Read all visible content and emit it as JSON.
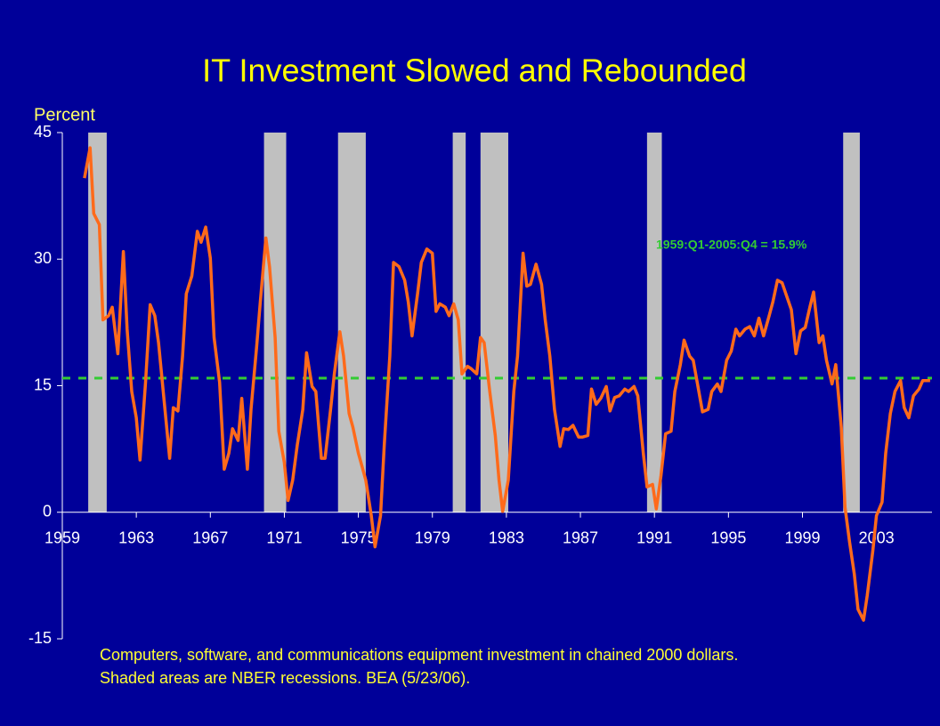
{
  "chart_data": {
    "type": "line",
    "title": "IT Investment Slowed and Rebounded",
    "y_label": "Percent",
    "annotation": "1959:Q1-2005:Q4 = 15.9%",
    "notes": [
      "Computers, software, and communications equipment investment in chained 2000 dollars.",
      "Shaded areas are NBER recessions.  BEA (5/23/06)."
    ],
    "average": 15.9,
    "average_color": "#33cc33",
    "recession_color": "#c0c0c0",
    "recessions": [
      [
        1960.4,
        1961.4
      ],
      [
        1969.9,
        1971.1
      ],
      [
        1973.9,
        1975.4
      ],
      [
        1980.1,
        1980.8
      ],
      [
        1981.6,
        1983.1
      ],
      [
        1990.6,
        1991.4
      ],
      [
        2001.2,
        2002.1
      ]
    ],
    "xlim": [
      1959,
      2006
    ],
    "xticks": [
      1959,
      1963,
      1967,
      1971,
      1975,
      1979,
      1983,
      1987,
      1991,
      1995,
      1999,
      2003
    ],
    "ylim": [
      -15,
      45
    ],
    "yticks": [
      -15,
      0,
      15,
      30,
      45
    ],
    "series": [
      {
        "name": "IT investment",
        "color": "#ff6a1a",
        "x": [
          1960.2,
          1960.5,
          1960.7,
          1961.0,
          1961.2,
          1961.5,
          1961.7,
          1962.0,
          1962.3,
          1962.5,
          1962.75,
          1963.0,
          1963.2,
          1963.5,
          1963.75,
          1964.0,
          1964.2,
          1964.5,
          1964.8,
          1965.0,
          1965.25,
          1965.5,
          1965.7,
          1966.0,
          1966.3,
          1966.5,
          1966.75,
          1967.0,
          1967.2,
          1967.5,
          1967.75,
          1968.0,
          1968.2,
          1968.5,
          1968.7,
          1969.0,
          1969.2,
          1969.5,
          1969.7,
          1970.0,
          1970.2,
          1970.5,
          1970.7,
          1971.0,
          1971.2,
          1971.45,
          1971.7,
          1972.0,
          1972.2,
          1972.5,
          1972.7,
          1973.0,
          1973.2,
          1973.5,
          1973.7,
          1974.0,
          1974.2,
          1974.5,
          1974.7,
          1975.0,
          1975.2,
          1975.4,
          1975.7,
          1975.9,
          1976.2,
          1976.4,
          1976.7,
          1976.9,
          1977.2,
          1977.5,
          1977.7,
          1977.9,
          1978.2,
          1978.4,
          1978.7,
          1979.0,
          1979.2,
          1979.4,
          1979.7,
          1979.9,
          1980.15,
          1980.4,
          1980.6,
          1980.9,
          1981.1,
          1981.4,
          1981.6,
          1981.8,
          1982.1,
          1982.4,
          1982.6,
          1982.8,
          1983.1,
          1983.4,
          1983.6,
          1983.9,
          1984.1,
          1984.3,
          1984.6,
          1984.9,
          1985.1,
          1985.35,
          1985.6,
          1985.9,
          1986.1,
          1986.35,
          1986.6,
          1986.9,
          1987.1,
          1987.4,
          1987.6,
          1987.85,
          1988.1,
          1988.4,
          1988.6,
          1988.85,
          1989.1,
          1989.4,
          1989.6,
          1989.9,
          1990.1,
          1990.4,
          1990.6,
          1990.9,
          1991.1,
          1991.35,
          1991.6,
          1991.9,
          1992.1,
          1992.4,
          1992.6,
          1992.9,
          1993.1,
          1993.4,
          1993.6,
          1993.9,
          1994.1,
          1994.4,
          1994.6,
          1994.9,
          1995.15,
          1995.4,
          1995.6,
          1995.9,
          1996.15,
          1996.4,
          1996.65,
          1996.9,
          1997.2,
          1997.4,
          1997.65,
          1997.9,
          1998.1,
          1998.4,
          1998.65,
          1998.9,
          1999.15,
          1999.4,
          1999.6,
          1999.9,
          2000.1,
          2000.3,
          2000.6,
          2000.8,
          2001.1,
          2001.3,
          2001.55,
          2001.8,
          2002.0,
          2002.3,
          2002.5,
          2002.8,
          2003.0,
          2003.3,
          2003.5,
          2003.75,
          2004.0,
          2004.3,
          2004.5,
          2004.75,
          2005.0,
          2005.3,
          2005.5,
          2005.9
        ],
        "values": [
          39.6,
          43.2,
          35.4,
          34.1,
          22.8,
          23.3,
          24.3,
          18.8,
          30.9,
          21.7,
          14.3,
          11.2,
          6.2,
          15.4,
          24.6,
          23.3,
          20.1,
          13.3,
          6.4,
          12.4,
          12.0,
          18.5,
          25.9,
          28.0,
          33.3,
          32.0,
          33.8,
          30.1,
          20.7,
          15.4,
          5.1,
          7.0,
          9.9,
          8.5,
          13.5,
          5.1,
          12.2,
          19.6,
          24.9,
          32.5,
          29.1,
          20.7,
          9.6,
          5.9,
          1.4,
          3.8,
          8.0,
          12.2,
          18.9,
          14.9,
          14.3,
          6.4,
          6.4,
          12.2,
          16.4,
          21.4,
          18.5,
          11.7,
          10.1,
          7.0,
          5.4,
          3.8,
          -0.4,
          -4.1,
          -0.4,
          8.0,
          18.5,
          29.6,
          29.1,
          27.5,
          24.9,
          20.9,
          25.9,
          29.6,
          31.2,
          30.7,
          23.8,
          24.7,
          24.3,
          23.3,
          24.7,
          22.8,
          16.4,
          17.3,
          17.0,
          16.4,
          20.7,
          20.1,
          14.3,
          9.1,
          3.8,
          0.1,
          3.8,
          14.3,
          18.5,
          30.7,
          26.8,
          27.0,
          29.4,
          27.0,
          22.8,
          18.5,
          12.2,
          7.8,
          9.9,
          9.8,
          10.3,
          8.9,
          8.9,
          9.1,
          14.6,
          12.8,
          13.5,
          14.9,
          12.0,
          13.6,
          13.8,
          14.6,
          14.3,
          14.9,
          13.8,
          7.0,
          3.0,
          3.3,
          0.4,
          4.3,
          9.3,
          9.6,
          14.3,
          17.5,
          20.4,
          18.5,
          18.0,
          14.3,
          11.9,
          12.2,
          14.3,
          15.2,
          14.3,
          18.0,
          19.1,
          21.7,
          20.9,
          21.7,
          22.0,
          20.9,
          23.0,
          20.9,
          23.3,
          24.9,
          27.5,
          27.2,
          25.9,
          24.0,
          18.8,
          21.5,
          21.9,
          24.3,
          26.1,
          20.1,
          20.9,
          18.0,
          15.2,
          17.5,
          10.1,
          0.6,
          -3.6,
          -7.3,
          -11.5,
          -12.8,
          -9.9,
          -4.6,
          -0.4,
          1.2,
          7.0,
          11.7,
          14.3,
          15.6,
          12.4,
          11.2,
          13.8,
          14.6,
          15.6,
          15.6
        ]
      }
    ]
  }
}
